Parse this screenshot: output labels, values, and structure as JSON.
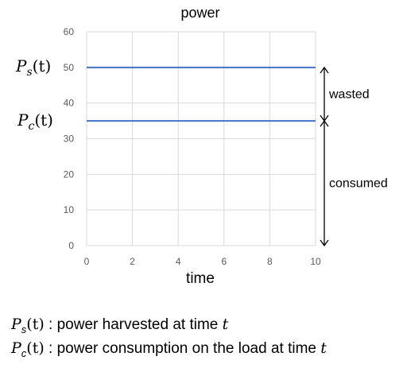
{
  "chart_data": {
    "type": "line",
    "title": "power",
    "xlabel": "time",
    "ylabel": "",
    "xlim": [
      0,
      10
    ],
    "ylim": [
      0,
      60
    ],
    "xticks": [
      0,
      2,
      4,
      6,
      8,
      10
    ],
    "yticks": [
      0,
      10,
      20,
      30,
      40,
      50,
      60
    ],
    "grid": true,
    "series": [
      {
        "name": "P_s(t)",
        "x": [
          0,
          10
        ],
        "y": [
          50,
          50
        ],
        "color": "#4472c4"
      },
      {
        "name": "P_c(t)",
        "x": [
          0,
          10
        ],
        "y": [
          35,
          35
        ],
        "color": "#4472c4"
      }
    ],
    "annotations": [
      {
        "text": "wasted",
        "from": 50,
        "to": 35
      },
      {
        "text": "consumed",
        "from": 35,
        "to": 0
      }
    ]
  },
  "series_labels": {
    "ps": {
      "sym": "P",
      "sub": "s",
      "arg": "(t)"
    },
    "pc": {
      "sym": "P",
      "sub": "c",
      "arg": "(t)"
    }
  },
  "legend": [
    {
      "sym": "P",
      "sub": "s",
      "arg": "(t)",
      "text": " : power harvested at time ",
      "var": "t"
    },
    {
      "sym": "P",
      "sub": "c",
      "arg": "(t)",
      "text": " : power consumption on the load at time ",
      "var": "t"
    }
  ]
}
